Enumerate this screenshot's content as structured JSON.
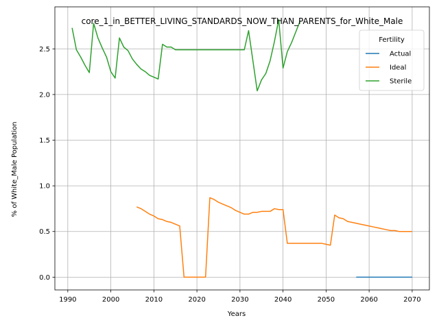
{
  "chart_data": {
    "type": "line",
    "title": "core_1_in_BETTER_LIVING_STANDARDS_NOW_THAN_PARENTS_for_White_Male",
    "xlabel": "Years",
    "ylabel": "% of White_Male Population",
    "xlim": [
      1987,
      2074
    ],
    "ylim": [
      -0.14,
      2.96
    ],
    "x_ticks": [
      1990,
      2000,
      2010,
      2020,
      2030,
      2040,
      2050,
      2060,
      2070
    ],
    "y_ticks": [
      0.0,
      0.5,
      1.0,
      1.5,
      2.0,
      2.5
    ],
    "x_tick_labels": [
      "1990",
      "2000",
      "2010",
      "2020",
      "2030",
      "2040",
      "2050",
      "2060",
      "2070"
    ],
    "y_tick_labels": [
      "0.0",
      "0.5",
      "1.0",
      "1.5",
      "2.0",
      "2.5"
    ],
    "grid": true,
    "legend": {
      "title": "Fertility",
      "position": "top-right"
    },
    "series": [
      {
        "name": "Actual",
        "color": "#1f77b4",
        "points": [
          [
            2057,
            0.0
          ],
          [
            2060,
            0.0
          ],
          [
            2065,
            0.0
          ],
          [
            2070,
            0.0
          ]
        ]
      },
      {
        "name": "Ideal",
        "color": "#ff7f0e",
        "points": [
          [
            2006,
            0.77
          ],
          [
            2007,
            0.75
          ],
          [
            2008,
            0.72
          ],
          [
            2009,
            0.69
          ],
          [
            2010,
            0.67
          ],
          [
            2011,
            0.64
          ],
          [
            2012,
            0.63
          ],
          [
            2013,
            0.61
          ],
          [
            2014,
            0.6
          ],
          [
            2015,
            0.58
          ],
          [
            2016,
            0.56
          ],
          [
            2017,
            0.0
          ],
          [
            2018,
            0.0
          ],
          [
            2019,
            0.0
          ],
          [
            2020,
            0.0
          ],
          [
            2021,
            0.0
          ],
          [
            2022,
            0.0
          ],
          [
            2023,
            0.87
          ],
          [
            2024,
            0.85
          ],
          [
            2025,
            0.82
          ],
          [
            2026,
            0.8
          ],
          [
            2027,
            0.78
          ],
          [
            2028,
            0.76
          ],
          [
            2029,
            0.73
          ],
          [
            2030,
            0.71
          ],
          [
            2031,
            0.69
          ],
          [
            2032,
            0.69
          ],
          [
            2033,
            0.71
          ],
          [
            2034,
            0.71
          ],
          [
            2035,
            0.72
          ],
          [
            2036,
            0.72
          ],
          [
            2037,
            0.72
          ],
          [
            2038,
            0.75
          ],
          [
            2039,
            0.74
          ],
          [
            2040,
            0.74
          ],
          [
            2041,
            0.37
          ],
          [
            2042,
            0.37
          ],
          [
            2043,
            0.37
          ],
          [
            2044,
            0.37
          ],
          [
            2045,
            0.37
          ],
          [
            2046,
            0.37
          ],
          [
            2047,
            0.37
          ],
          [
            2048,
            0.37
          ],
          [
            2049,
            0.37
          ],
          [
            2050,
            0.36
          ],
          [
            2051,
            0.35
          ],
          [
            2052,
            0.68
          ],
          [
            2053,
            0.65
          ],
          [
            2054,
            0.64
          ],
          [
            2055,
            0.61
          ],
          [
            2056,
            0.6
          ],
          [
            2057,
            0.59
          ],
          [
            2058,
            0.58
          ],
          [
            2059,
            0.57
          ],
          [
            2060,
            0.56
          ],
          [
            2061,
            0.55
          ],
          [
            2062,
            0.54
          ],
          [
            2063,
            0.53
          ],
          [
            2064,
            0.52
          ],
          [
            2065,
            0.51
          ],
          [
            2066,
            0.51
          ],
          [
            2067,
            0.5
          ],
          [
            2068,
            0.5
          ],
          [
            2069,
            0.5
          ],
          [
            2070,
            0.5
          ]
        ]
      },
      {
        "name": "Sterile",
        "color": "#2ca02c",
        "points": [
          [
            1991,
            2.73
          ],
          [
            1992,
            2.49
          ],
          [
            1993,
            2.41
          ],
          [
            1994,
            2.32
          ],
          [
            1995,
            2.24
          ],
          [
            1996,
            2.78
          ],
          [
            1997,
            2.62
          ],
          [
            1998,
            2.51
          ],
          [
            1999,
            2.41
          ],
          [
            2000,
            2.25
          ],
          [
            2001,
            2.18
          ],
          [
            2002,
            2.62
          ],
          [
            2003,
            2.52
          ],
          [
            2004,
            2.48
          ],
          [
            2005,
            2.39
          ],
          [
            2006,
            2.33
          ],
          [
            2007,
            2.28
          ],
          [
            2008,
            2.25
          ],
          [
            2009,
            2.21
          ],
          [
            2010,
            2.19
          ],
          [
            2011,
            2.17
          ],
          [
            2012,
            2.55
          ],
          [
            2013,
            2.52
          ],
          [
            2014,
            2.52
          ],
          [
            2015,
            2.49
          ],
          [
            2016,
            2.49
          ],
          [
            2020,
            2.49
          ],
          [
            2025,
            2.49
          ],
          [
            2031,
            2.49
          ],
          [
            2032,
            2.7
          ],
          [
            2033,
            2.37
          ],
          [
            2034,
            2.04
          ],
          [
            2035,
            2.16
          ],
          [
            2036,
            2.23
          ],
          [
            2037,
            2.37
          ],
          [
            2038,
            2.58
          ],
          [
            2039,
            2.82
          ],
          [
            2040,
            2.29
          ],
          [
            2041,
            2.47
          ],
          [
            2042,
            2.57
          ],
          [
            2043,
            2.69
          ],
          [
            2044,
            2.81
          ]
        ]
      }
    ]
  }
}
